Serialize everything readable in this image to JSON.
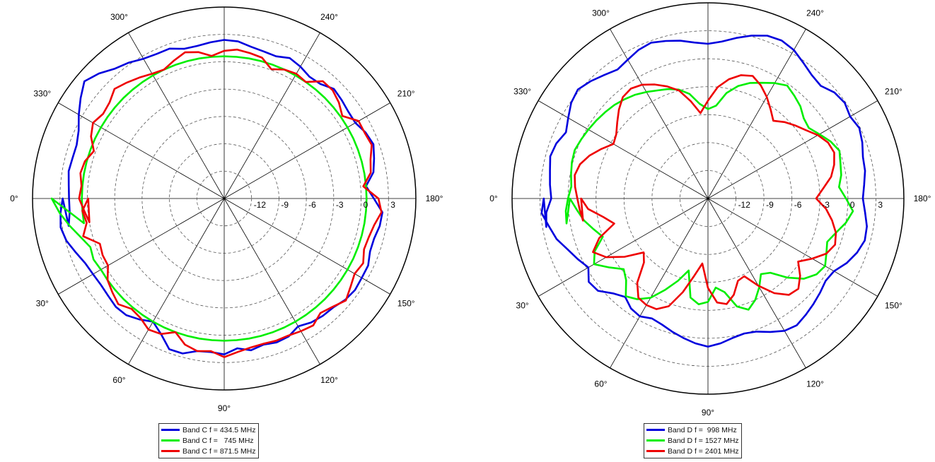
{
  "chart_data": [
    {
      "type": "polar-line",
      "rlim": [
        -15,
        6
      ],
      "r_ticks": [
        "-12",
        "-9",
        "-6",
        "-3",
        "0",
        "3"
      ],
      "theta_ticks": [
        "0°",
        "30°",
        "60°",
        "90°",
        "120°",
        "150°",
        "180°",
        "210°",
        "240°",
        "300°",
        "330°"
      ],
      "theta_step_deg": 5,
      "legend_placement": "bottom",
      "grid": true,
      "series": [
        {
          "name": "Band C f = 434.5 MHz",
          "color": "#0000dd",
          "values": [
            2.7,
            3.0,
            3.2,
            2.9,
            2.3,
            1.8,
            1.6,
            1.5,
            1.6,
            1.8,
            1.7,
            1.2,
            0.6,
            1.4,
            2.6,
            2.6,
            2.0,
            1.9,
            2.1,
            1.5,
            1.9,
            1.6,
            1.8,
            1.7,
            1.2,
            1.6,
            1.8,
            1.9,
            2.3,
            2.5,
            2.4,
            2.4,
            2.0,
            2.0,
            2.3,
            2.4,
            1.4,
            0.6,
            1.6,
            2.0,
            2.4,
            2.1,
            1.6,
            1.6,
            1.8,
            2.0,
            1.4,
            1.3,
            1.7,
            2.0,
            1.6,
            1.7,
            1.9,
            2.3,
            2.4,
            2.2,
            2.0,
            2.0,
            2.5,
            2.5,
            2.7,
            3.2,
            3.6,
            4.4,
            5.0,
            4.2,
            3.4,
            2.6,
            2.2,
            2.2,
            2.3,
            2.1,
            2.0,
            2.0,
            2.3
          ]
        },
        {
          "name": "Band C f =   745 MHz",
          "color": "#00ee00",
          "values": [
            3.9,
            3.1,
            2.2,
            1.3,
            0.6,
            0.8,
            0.6,
            0.6,
            0.6,
            0.6,
            0.6,
            0.6,
            0.6,
            0.6,
            0.6,
            0.6,
            0.6,
            0.6,
            0.6,
            0.6,
            0.6,
            0.6,
            0.6,
            0.6,
            0.6,
            0.6,
            0.6,
            0.6,
            0.6,
            0.6,
            0.6,
            0.6,
            0.6,
            0.6,
            0.6,
            0.6,
            0.6,
            0.6,
            0.6,
            0.6,
            0.6,
            0.6,
            0.6,
            0.6,
            0.6,
            0.6,
            0.6,
            0.6,
            0.6,
            0.6,
            0.6,
            0.6,
            0.6,
            0.6,
            0.6,
            0.6,
            0.6,
            0.6,
            0.6,
            0.6,
            0.6,
            0.6,
            0.6,
            0.6,
            0.6,
            0.6,
            0.6,
            0.6,
            0.6,
            0.6,
            0.6,
            0.6,
            0.6,
            0.6,
            0.6
          ]
        },
        {
          "name": "Band C f = 871.5 MHz",
          "color": "#ee0000",
          "values": [
            -0.1,
            0.6,
            0.3,
            1.0,
            -0.5,
            -0.3,
            -0.3,
            0.6,
            1.0,
            1.4,
            0.8,
            1.0,
            1.6,
            1.4,
            0.6,
            1.6,
            2.0,
            1.8,
            2.4,
            1.9,
            1.6,
            1.5,
            1.6,
            1.6,
            1.8,
            2.0,
            1.4,
            1.8,
            2.4,
            1.9,
            1.5,
            1.8,
            1.3,
            1.4,
            1.7,
            2.3,
            1.9,
            0.3,
            1.3,
            1.6,
            2.2,
            2.0,
            2.0,
            0.8,
            1.4,
            1.8,
            1.8,
            0.6,
            0.8,
            0.6,
            0.1,
            1.0,
            1.2,
            1.4,
            1.2,
            0.7,
            1.3,
            1.6,
            1.1,
            0.6,
            0.8,
            1.2,
            1.6,
            2.0,
            1.4,
            1.2,
            1.6,
            1.1,
            0.2,
            0.8,
            1.0,
            0.7,
            0.9,
            0.4,
            0.0
          ]
        }
      ]
    },
    {
      "type": "polar-line",
      "rlim": [
        -15,
        6
      ],
      "r_ticks": [
        "-12",
        "-9",
        "-6",
        "-3",
        "0",
        "3"
      ],
      "theta_ticks": [
        "0°",
        "30°",
        "60°",
        "90°",
        "120°",
        "150°",
        "180°",
        "210°",
        "240°",
        "300°",
        "330°"
      ],
      "theta_step_deg": 5,
      "legend_placement": "bottom",
      "grid": true,
      "series": [
        {
          "name": "Band D f =  998 MHz",
          "color": "#0000dd",
          "values": [
            2.6,
            2.9,
            2.3,
            1.8,
            1.0,
            0.4,
            -0.2,
            0.6,
            0.4,
            -0.6,
            -1.2,
            -0.6,
            -0.4,
            -0.8,
            -0.6,
            -0.2,
            0.2,
            0.6,
            0.9,
            0.6,
            0.2,
            0.0,
            0.2,
            0.8,
            1.4,
            1.6,
            1.3,
            1.0,
            0.7,
            0.4,
            0.6,
            1.4,
            2.0,
            2.4,
            2.3,
            1.9,
            1.6,
            1.8,
            2.1,
            2.2,
            2.6,
            2.9,
            2.6,
            2.9,
            2.7,
            2.1,
            2.3,
            2.8,
            3.4,
            3.7,
            3.6,
            3.1,
            2.5,
            1.9,
            1.6,
            1.8,
            2.2,
            2.5,
            2.8,
            2.6,
            2.2,
            1.9,
            2.3,
            2.8,
            3.2,
            2.9,
            2.3,
            1.8,
            2.3,
            2.5,
            2.2,
            2.0,
            1.8,
            2.4,
            2.6
          ]
        },
        {
          "name": "Band D f = 1527 MHz",
          "color": "#00ee00",
          "values": [
            -0.2,
            -0.9,
            -1.5,
            -2.3,
            -3.0,
            -1.6,
            -0.9,
            -2.1,
            -3.2,
            -2.6,
            -1.3,
            -1.8,
            -2.7,
            -4.2,
            -5.6,
            -7.0,
            -4.2,
            -3.6,
            -3.9,
            -5.4,
            -4.8,
            -3.0,
            -2.3,
            -3.0,
            -4.0,
            -5.1,
            -4.6,
            -3.0,
            -1.6,
            -0.8,
            -0.5,
            -1.0,
            -1.4,
            -0.8,
            0.0,
            0.6,
            -0.2,
            -0.9,
            -0.5,
            -0.3,
            0.0,
            -0.5,
            -1.2,
            -1.8,
            -1.6,
            -1.0,
            -0.6,
            -0.2,
            -0.7,
            -1.3,
            -1.8,
            -2.5,
            -3.5,
            -5.0,
            -5.4,
            -4.8,
            -3.6,
            -2.9,
            -2.5,
            -2.2,
            -1.8,
            -1.4,
            -1.1,
            -0.8,
            -0.6,
            -0.4,
            -0.2,
            0.0,
            0.2,
            0.1,
            -0.1,
            -0.3,
            0.0,
            0.3,
            0.4
          ]
        },
        {
          "name": "Band D f = 2401 MHz",
          "color": "#ee0000",
          "values": [
            -1.4,
            -2.1,
            -3.6,
            -4.6,
            -2.6,
            -1.4,
            -2.4,
            -4.1,
            -6.0,
            -5.3,
            -3.2,
            -2.0,
            -1.8,
            -1.9,
            -2.7,
            -4.6,
            -6.6,
            -8.0,
            -5.4,
            -3.8,
            -3.5,
            -4.3,
            -5.6,
            -5.8,
            -4.2,
            -2.6,
            -1.5,
            -1.3,
            -2.1,
            -3.2,
            -2.1,
            -1.0,
            -0.5,
            -0.8,
            -1.5,
            -2.3,
            -3.4,
            -2.6,
            -1.6,
            -1.0,
            -0.6,
            -0.8,
            -1.4,
            -2.2,
            -2.8,
            -3.4,
            -4.1,
            -3.3,
            -2.4,
            -1.6,
            -1.0,
            -1.3,
            -2.0,
            -3.0,
            -4.5,
            -5.8,
            -4.4,
            -3.0,
            -2.2,
            -1.5,
            -0.9,
            -0.6,
            -0.8,
            -1.5,
            -2.3,
            -3.0,
            -3.3,
            -2.4,
            -1.5,
            -0.8,
            -0.5,
            -0.7,
            -1.0,
            -1.2,
            -1.4
          ]
        }
      ]
    }
  ]
}
